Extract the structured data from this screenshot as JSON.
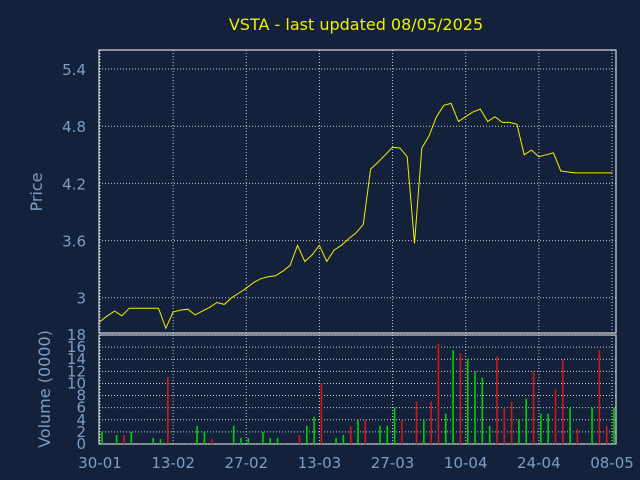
{
  "colors": {
    "background": "#13223a",
    "frame": "#ffffff",
    "grid": "#c8ced8",
    "title": "#f0f000",
    "label": "#7f9dc4",
    "price_line": "#f0f000",
    "volume_up": "#00d000",
    "volume_down": "#d01818"
  },
  "chart_data": [
    {
      "type": "line",
      "title": "VSTA - last updated 08/05/2025",
      "ylabel": "Price",
      "ylim": [
        2.63,
        5.6
      ],
      "yticks": [
        "5.4",
        "4.8",
        "4.2",
        "3.6",
        "3"
      ],
      "ytick_values": [
        5.4,
        4.8,
        4.2,
        3.6,
        3.0
      ],
      "grid": true,
      "x": [
        "30-01",
        "31-01",
        "03-02",
        "04-02",
        "05-02",
        "06-02",
        "07-02",
        "10-02",
        "11-02",
        "12-02",
        "13-02",
        "14-02",
        "17-02",
        "18-02",
        "19-02",
        "20-02",
        "21-02",
        "24-02",
        "25-02",
        "26-02",
        "27-02",
        "28-02",
        "03-03",
        "04-03",
        "05-03",
        "06-03",
        "07-03",
        "10-03",
        "11-03",
        "12-03",
        "13-03",
        "14-03",
        "17-03",
        "18-03",
        "19-03",
        "20-03",
        "21-03",
        "24-03",
        "25-03",
        "26-03",
        "27-03",
        "28-03",
        "31-03",
        "01-04",
        "02-04",
        "03-04",
        "04-04",
        "07-04",
        "08-04",
        "09-04",
        "10-04",
        "11-04",
        "14-04",
        "15-04",
        "16-04",
        "17-04",
        "18-04",
        "21-04",
        "22-04",
        "23-04",
        "24-04",
        "25-04",
        "28-04",
        "29-04",
        "30-04",
        "01-05",
        "02-05",
        "05-05",
        "06-05",
        "07-05",
        "08-05"
      ],
      "series": [
        {
          "values": [
            2.75,
            2.81,
            2.86,
            2.81,
            2.89,
            2.89,
            2.89,
            2.89,
            2.89,
            2.68,
            2.85,
            2.87,
            2.88,
            2.82,
            2.86,
            2.9,
            2.95,
            2.93,
            3.0,
            3.05,
            3.1,
            3.16,
            3.2,
            3.22,
            3.23,
            3.28,
            3.34,
            3.55,
            3.38,
            3.45,
            3.55,
            3.38,
            3.5,
            3.55,
            3.62,
            3.68,
            3.77,
            4.35,
            4.42,
            4.5,
            4.58,
            4.57,
            4.48,
            3.57,
            4.57,
            4.7,
            4.9,
            5.02,
            5.04,
            4.85,
            4.9,
            4.95,
            4.98,
            4.85,
            4.9,
            4.84,
            4.84,
            4.82,
            4.5,
            4.55,
            4.48,
            4.5,
            4.52,
            4.33,
            4.32,
            4.31,
            4.31,
            4.31,
            4.31,
            4.31,
            4.31
          ]
        }
      ]
    },
    {
      "type": "bar",
      "ylabel": "Volume (0000)",
      "ylim": [
        0,
        18
      ],
      "yticks": [
        "18",
        "16",
        "14",
        "12",
        "10",
        "8",
        "6",
        "4",
        "2",
        "0"
      ],
      "ytick_values": [
        18,
        16,
        14,
        12,
        10,
        8,
        6,
        4,
        2,
        0
      ],
      "xticks": [
        "30-01",
        "13-02",
        "27-02",
        "13-03",
        "27-03",
        "10-04",
        "24-04",
        "08-05"
      ],
      "grid": true,
      "bars": [
        {
          "i": 0,
          "v": 2,
          "dir": "up"
        },
        {
          "i": 2,
          "v": 1.5,
          "dir": "up"
        },
        {
          "i": 3,
          "v": 1.5,
          "dir": "down"
        },
        {
          "i": 4,
          "v": 2,
          "dir": "up"
        },
        {
          "i": 7,
          "v": 1,
          "dir": "up"
        },
        {
          "i": 8,
          "v": 0.8,
          "dir": "up"
        },
        {
          "i": 9,
          "v": 11,
          "dir": "down"
        },
        {
          "i": 13,
          "v": 3,
          "dir": "up"
        },
        {
          "i": 14,
          "v": 2,
          "dir": "up"
        },
        {
          "i": 15,
          "v": 0.8,
          "dir": "down"
        },
        {
          "i": 18,
          "v": 3,
          "dir": "up"
        },
        {
          "i": 19,
          "v": 1,
          "dir": "up"
        },
        {
          "i": 20,
          "v": 1,
          "dir": "up"
        },
        {
          "i": 22,
          "v": 2,
          "dir": "up"
        },
        {
          "i": 23,
          "v": 1,
          "dir": "up"
        },
        {
          "i": 24,
          "v": 1,
          "dir": "up"
        },
        {
          "i": 27,
          "v": 1.5,
          "dir": "down"
        },
        {
          "i": 28,
          "v": 3,
          "dir": "up"
        },
        {
          "i": 29,
          "v": 4.5,
          "dir": "up"
        },
        {
          "i": 30,
          "v": 10,
          "dir": "down"
        },
        {
          "i": 32,
          "v": 1,
          "dir": "up"
        },
        {
          "i": 33,
          "v": 1.5,
          "dir": "up"
        },
        {
          "i": 34,
          "v": 3,
          "dir": "down"
        },
        {
          "i": 35,
          "v": 4,
          "dir": "up"
        },
        {
          "i": 36,
          "v": 4,
          "dir": "down"
        },
        {
          "i": 38,
          "v": 3,
          "dir": "up"
        },
        {
          "i": 39,
          "v": 3,
          "dir": "up"
        },
        {
          "i": 40,
          "v": 6,
          "dir": "up"
        },
        {
          "i": 41,
          "v": 4,
          "dir": "down"
        },
        {
          "i": 43,
          "v": 7,
          "dir": "down"
        },
        {
          "i": 44,
          "v": 4,
          "dir": "up"
        },
        {
          "i": 45,
          "v": 7,
          "dir": "down"
        },
        {
          "i": 46,
          "v": 16.5,
          "dir": "down"
        },
        {
          "i": 47,
          "v": 5,
          "dir": "up"
        },
        {
          "i": 48,
          "v": 15.5,
          "dir": "up"
        },
        {
          "i": 49,
          "v": 15,
          "dir": "down"
        },
        {
          "i": 50,
          "v": 14,
          "dir": "up"
        },
        {
          "i": 51,
          "v": 12,
          "dir": "up"
        },
        {
          "i": 52,
          "v": 11,
          "dir": "up"
        },
        {
          "i": 53,
          "v": 3,
          "dir": "up"
        },
        {
          "i": 54,
          "v": 14.5,
          "dir": "down"
        },
        {
          "i": 55,
          "v": 6,
          "dir": "down"
        },
        {
          "i": 56,
          "v": 7,
          "dir": "down"
        },
        {
          "i": 57,
          "v": 4,
          "dir": "up"
        },
        {
          "i": 58,
          "v": 7.5,
          "dir": "up"
        },
        {
          "i": 59,
          "v": 12,
          "dir": "down"
        },
        {
          "i": 60,
          "v": 5,
          "dir": "up"
        },
        {
          "i": 61,
          "v": 5,
          "dir": "up"
        },
        {
          "i": 62,
          "v": 9,
          "dir": "down"
        },
        {
          "i": 63,
          "v": 14,
          "dir": "down"
        },
        {
          "i": 64,
          "v": 6,
          "dir": "up"
        },
        {
          "i": 65,
          "v": 2.5,
          "dir": "down"
        },
        {
          "i": 67,
          "v": 6,
          "dir": "up"
        },
        {
          "i": 68,
          "v": 15.5,
          "dir": "down"
        },
        {
          "i": 69,
          "v": 3,
          "dir": "down"
        },
        {
          "i": 70,
          "v": 6,
          "dir": "up"
        }
      ]
    }
  ]
}
